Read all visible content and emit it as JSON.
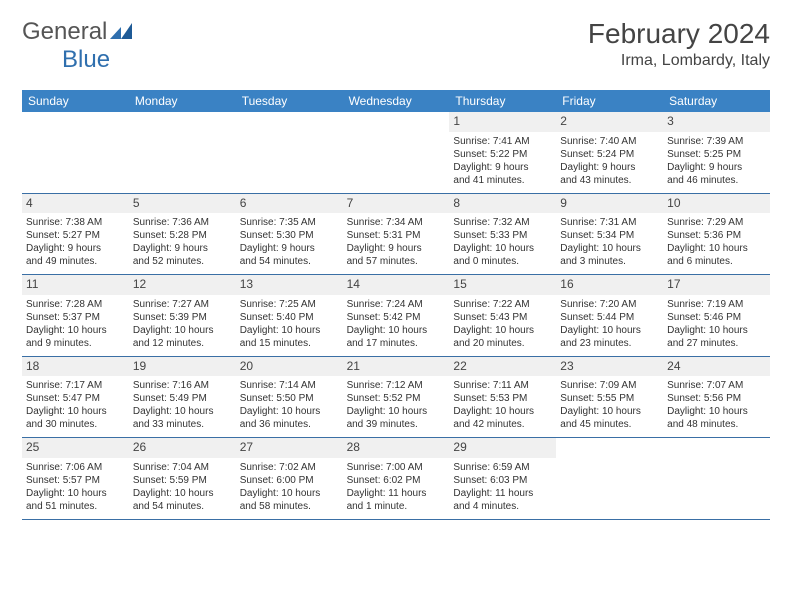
{
  "logo": {
    "text_a": "General",
    "text_b": "Blue"
  },
  "title": "February 2024",
  "location": "Irma, Lombardy, Italy",
  "colors": {
    "header_bg": "#3a82c4",
    "header_text": "#ffffff",
    "border": "#3a6fa5",
    "daynum_bg": "#f0f0f0",
    "text": "#333333",
    "logo_gray": "#555555",
    "logo_blue": "#2f6fae"
  },
  "day_names": [
    "Sunday",
    "Monday",
    "Tuesday",
    "Wednesday",
    "Thursday",
    "Friday",
    "Saturday"
  ],
  "weeks": [
    [
      {
        "empty": true
      },
      {
        "empty": true
      },
      {
        "empty": true
      },
      {
        "empty": true
      },
      {
        "n": "1",
        "sr": "Sunrise: 7:41 AM",
        "ss": "Sunset: 5:22 PM",
        "d1": "Daylight: 9 hours",
        "d2": "and 41 minutes."
      },
      {
        "n": "2",
        "sr": "Sunrise: 7:40 AM",
        "ss": "Sunset: 5:24 PM",
        "d1": "Daylight: 9 hours",
        "d2": "and 43 minutes."
      },
      {
        "n": "3",
        "sr": "Sunrise: 7:39 AM",
        "ss": "Sunset: 5:25 PM",
        "d1": "Daylight: 9 hours",
        "d2": "and 46 minutes."
      }
    ],
    [
      {
        "n": "4",
        "sr": "Sunrise: 7:38 AM",
        "ss": "Sunset: 5:27 PM",
        "d1": "Daylight: 9 hours",
        "d2": "and 49 minutes."
      },
      {
        "n": "5",
        "sr": "Sunrise: 7:36 AM",
        "ss": "Sunset: 5:28 PM",
        "d1": "Daylight: 9 hours",
        "d2": "and 52 minutes."
      },
      {
        "n": "6",
        "sr": "Sunrise: 7:35 AM",
        "ss": "Sunset: 5:30 PM",
        "d1": "Daylight: 9 hours",
        "d2": "and 54 minutes."
      },
      {
        "n": "7",
        "sr": "Sunrise: 7:34 AM",
        "ss": "Sunset: 5:31 PM",
        "d1": "Daylight: 9 hours",
        "d2": "and 57 minutes."
      },
      {
        "n": "8",
        "sr": "Sunrise: 7:32 AM",
        "ss": "Sunset: 5:33 PM",
        "d1": "Daylight: 10 hours",
        "d2": "and 0 minutes."
      },
      {
        "n": "9",
        "sr": "Sunrise: 7:31 AM",
        "ss": "Sunset: 5:34 PM",
        "d1": "Daylight: 10 hours",
        "d2": "and 3 minutes."
      },
      {
        "n": "10",
        "sr": "Sunrise: 7:29 AM",
        "ss": "Sunset: 5:36 PM",
        "d1": "Daylight: 10 hours",
        "d2": "and 6 minutes."
      }
    ],
    [
      {
        "n": "11",
        "sr": "Sunrise: 7:28 AM",
        "ss": "Sunset: 5:37 PM",
        "d1": "Daylight: 10 hours",
        "d2": "and 9 minutes."
      },
      {
        "n": "12",
        "sr": "Sunrise: 7:27 AM",
        "ss": "Sunset: 5:39 PM",
        "d1": "Daylight: 10 hours",
        "d2": "and 12 minutes."
      },
      {
        "n": "13",
        "sr": "Sunrise: 7:25 AM",
        "ss": "Sunset: 5:40 PM",
        "d1": "Daylight: 10 hours",
        "d2": "and 15 minutes."
      },
      {
        "n": "14",
        "sr": "Sunrise: 7:24 AM",
        "ss": "Sunset: 5:42 PM",
        "d1": "Daylight: 10 hours",
        "d2": "and 17 minutes."
      },
      {
        "n": "15",
        "sr": "Sunrise: 7:22 AM",
        "ss": "Sunset: 5:43 PM",
        "d1": "Daylight: 10 hours",
        "d2": "and 20 minutes."
      },
      {
        "n": "16",
        "sr": "Sunrise: 7:20 AM",
        "ss": "Sunset: 5:44 PM",
        "d1": "Daylight: 10 hours",
        "d2": "and 23 minutes."
      },
      {
        "n": "17",
        "sr": "Sunrise: 7:19 AM",
        "ss": "Sunset: 5:46 PM",
        "d1": "Daylight: 10 hours",
        "d2": "and 27 minutes."
      }
    ],
    [
      {
        "n": "18",
        "sr": "Sunrise: 7:17 AM",
        "ss": "Sunset: 5:47 PM",
        "d1": "Daylight: 10 hours",
        "d2": "and 30 minutes."
      },
      {
        "n": "19",
        "sr": "Sunrise: 7:16 AM",
        "ss": "Sunset: 5:49 PM",
        "d1": "Daylight: 10 hours",
        "d2": "and 33 minutes."
      },
      {
        "n": "20",
        "sr": "Sunrise: 7:14 AM",
        "ss": "Sunset: 5:50 PM",
        "d1": "Daylight: 10 hours",
        "d2": "and 36 minutes."
      },
      {
        "n": "21",
        "sr": "Sunrise: 7:12 AM",
        "ss": "Sunset: 5:52 PM",
        "d1": "Daylight: 10 hours",
        "d2": "and 39 minutes."
      },
      {
        "n": "22",
        "sr": "Sunrise: 7:11 AM",
        "ss": "Sunset: 5:53 PM",
        "d1": "Daylight: 10 hours",
        "d2": "and 42 minutes."
      },
      {
        "n": "23",
        "sr": "Sunrise: 7:09 AM",
        "ss": "Sunset: 5:55 PM",
        "d1": "Daylight: 10 hours",
        "d2": "and 45 minutes."
      },
      {
        "n": "24",
        "sr": "Sunrise: 7:07 AM",
        "ss": "Sunset: 5:56 PM",
        "d1": "Daylight: 10 hours",
        "d2": "and 48 minutes."
      }
    ],
    [
      {
        "n": "25",
        "sr": "Sunrise: 7:06 AM",
        "ss": "Sunset: 5:57 PM",
        "d1": "Daylight: 10 hours",
        "d2": "and 51 minutes."
      },
      {
        "n": "26",
        "sr": "Sunrise: 7:04 AM",
        "ss": "Sunset: 5:59 PM",
        "d1": "Daylight: 10 hours",
        "d2": "and 54 minutes."
      },
      {
        "n": "27",
        "sr": "Sunrise: 7:02 AM",
        "ss": "Sunset: 6:00 PM",
        "d1": "Daylight: 10 hours",
        "d2": "and 58 minutes."
      },
      {
        "n": "28",
        "sr": "Sunrise: 7:00 AM",
        "ss": "Sunset: 6:02 PM",
        "d1": "Daylight: 11 hours",
        "d2": "and 1 minute."
      },
      {
        "n": "29",
        "sr": "Sunrise: 6:59 AM",
        "ss": "Sunset: 6:03 PM",
        "d1": "Daylight: 11 hours",
        "d2": "and 4 minutes."
      },
      {
        "empty": true
      },
      {
        "empty": true
      }
    ]
  ]
}
